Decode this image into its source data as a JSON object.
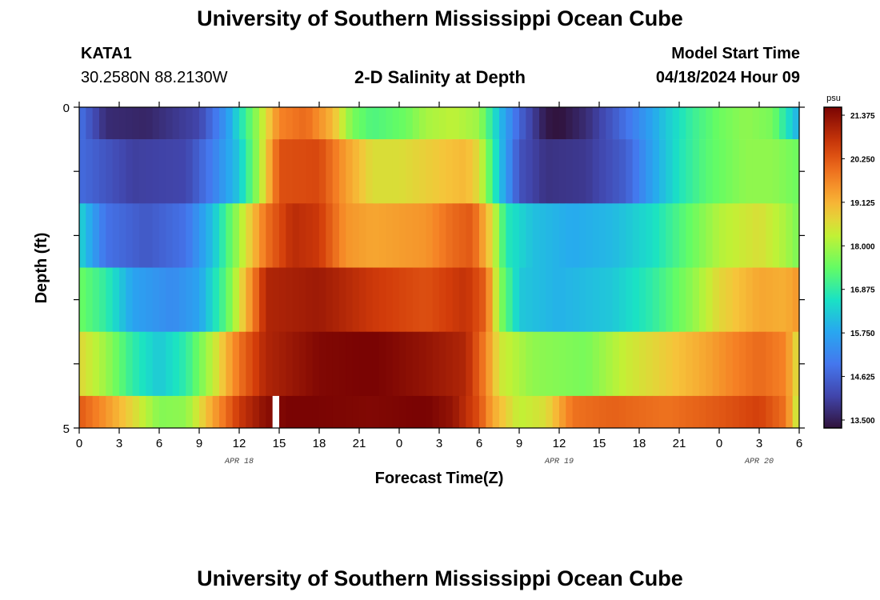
{
  "titles": {
    "main": "University of Southern Mississippi Ocean Cube",
    "footer": "University of Southern Mississippi Ocean Cube"
  },
  "station": {
    "id": "KATA1",
    "coords": "30.2580N  88.2130W"
  },
  "plot_title": "2-D Salinity at Depth",
  "model": {
    "label": "Model Start Time",
    "value": "04/18/2024 Hour 09"
  },
  "chart_data": {
    "type": "heatmap",
    "title": "2-D Salinity at Depth",
    "xlabel": "Forecast Time(Z)",
    "ylabel": "Depth (ft)",
    "units": "psu",
    "x_ticks": [
      "0",
      "3",
      "6",
      "9",
      "12",
      "15",
      "18",
      "21",
      "0",
      "3",
      "6",
      "9",
      "12",
      "15",
      "18",
      "21",
      "0",
      "3",
      "6"
    ],
    "x_range_hours": [
      0,
      54
    ],
    "date_labels": [
      {
        "label": "APR 18",
        "hour": 12
      },
      {
        "label": "APR 19",
        "hour": 36
      },
      {
        "label": "APR 20",
        "hour": 51
      }
    ],
    "y_ticks": [
      "0",
      "5"
    ],
    "y_range": [
      0,
      5
    ],
    "colorbar": {
      "min": 13.5,
      "max": 21.375,
      "labels": [
        "21.375",
        "20.250",
        "19.125",
        "18.000",
        "16.875",
        "15.750",
        "14.625",
        "13.500"
      ]
    },
    "missing_hour": 14.5,
    "rows": [
      {
        "depth_band": "0-0.5",
        "keyframes": [
          [
            0,
            15.0
          ],
          [
            2,
            13.9
          ],
          [
            5,
            13.8
          ],
          [
            9,
            14.3
          ],
          [
            11,
            15.6
          ],
          [
            12,
            16.6
          ],
          [
            13.5,
            18.0
          ],
          [
            15,
            19.6
          ],
          [
            17,
            19.9
          ],
          [
            19,
            19.0
          ],
          [
            20.5,
            17.6
          ],
          [
            22,
            17.2
          ],
          [
            24.5,
            17.5
          ],
          [
            26,
            18.0
          ],
          [
            28,
            18.2
          ],
          [
            30,
            17.9
          ],
          [
            31.5,
            16.2
          ],
          [
            33,
            14.8
          ],
          [
            35,
            13.6
          ],
          [
            36,
            13.5
          ],
          [
            38,
            13.9
          ],
          [
            40,
            14.6
          ],
          [
            42,
            15.4
          ],
          [
            44,
            16.3
          ],
          [
            46,
            17.0
          ],
          [
            48,
            17.5
          ],
          [
            50,
            17.8
          ],
          [
            52,
            17.6
          ],
          [
            54,
            15.9
          ]
        ]
      },
      {
        "depth_band": "0.5-1.5",
        "keyframes": [
          [
            0,
            14.9
          ],
          [
            4,
            14.2
          ],
          [
            8,
            14.3
          ],
          [
            10,
            15.2
          ],
          [
            12,
            16.3
          ],
          [
            13.5,
            18.0
          ],
          [
            15,
            20.2
          ],
          [
            18,
            20.3
          ],
          [
            20,
            19.3
          ],
          [
            22,
            18.5
          ],
          [
            24,
            18.5
          ],
          [
            27,
            18.8
          ],
          [
            29,
            19.0
          ],
          [
            30,
            18.5
          ],
          [
            31.5,
            16.3
          ],
          [
            33,
            14.5
          ],
          [
            35,
            14.0
          ],
          [
            38,
            14.1
          ],
          [
            41,
            14.7
          ],
          [
            43,
            15.8
          ],
          [
            45,
            16.7
          ],
          [
            47,
            17.3
          ],
          [
            50,
            17.8
          ],
          [
            52,
            17.8
          ],
          [
            54,
            17.5
          ]
        ]
      },
      {
        "depth_band": "1.5-2.5",
        "keyframes": [
          [
            0,
            16.5
          ],
          [
            2,
            15.0
          ],
          [
            5,
            14.6
          ],
          [
            8,
            15.0
          ],
          [
            10,
            16.2
          ],
          [
            12,
            18.0
          ],
          [
            14,
            19.8
          ],
          [
            16,
            20.7
          ],
          [
            18,
            20.5
          ],
          [
            20,
            19.4
          ],
          [
            22,
            19.2
          ],
          [
            26,
            19.4
          ],
          [
            28,
            19.9
          ],
          [
            29.5,
            20.1
          ],
          [
            31,
            18.5
          ],
          [
            32,
            16.8
          ],
          [
            34,
            16.2
          ],
          [
            37,
            15.9
          ],
          [
            40,
            16.1
          ],
          [
            43,
            16.6
          ],
          [
            46,
            17.5
          ],
          [
            48,
            18.1
          ],
          [
            51,
            18.5
          ],
          [
            53,
            18.0
          ],
          [
            54,
            17.6
          ]
        ]
      },
      {
        "depth_band": "2.5-3.5",
        "keyframes": [
          [
            0,
            17.5
          ],
          [
            2,
            16.9
          ],
          [
            4,
            15.8
          ],
          [
            7,
            15.4
          ],
          [
            9,
            15.8
          ],
          [
            11,
            17.3
          ],
          [
            12.5,
            19.0
          ],
          [
            14,
            20.8
          ],
          [
            18,
            21.0
          ],
          [
            22,
            20.5
          ],
          [
            26,
            20.2
          ],
          [
            29,
            20.6
          ],
          [
            30.5,
            20.0
          ],
          [
            31.5,
            17.8
          ],
          [
            33,
            16.3
          ],
          [
            36,
            16.0
          ],
          [
            40,
            16.3
          ],
          [
            43,
            16.9
          ],
          [
            46,
            17.8
          ],
          [
            48,
            18.6
          ],
          [
            51,
            19.2
          ],
          [
            53,
            19.1
          ],
          [
            54,
            19.4
          ]
        ]
      },
      {
        "depth_band": "3.5-4.5",
        "keyframes": [
          [
            0,
            18.6
          ],
          [
            2,
            17.9
          ],
          [
            4,
            16.9
          ],
          [
            6,
            16.3
          ],
          [
            8,
            16.9
          ],
          [
            10,
            18.2
          ],
          [
            12,
            19.8
          ],
          [
            14,
            20.8
          ],
          [
            18,
            21.3
          ],
          [
            22,
            21.4
          ],
          [
            26,
            21.1
          ],
          [
            29,
            20.8
          ],
          [
            30.5,
            19.6
          ],
          [
            31.5,
            18.4
          ],
          [
            34,
            17.8
          ],
          [
            38,
            17.6
          ],
          [
            41,
            18.3
          ],
          [
            43,
            18.6
          ],
          [
            45,
            18.9
          ],
          [
            47,
            19.2
          ],
          [
            49,
            19.6
          ],
          [
            51,
            19.9
          ],
          [
            53,
            19.6
          ],
          [
            54,
            18.3
          ]
        ]
      },
      {
        "depth_band": "4.5-5",
        "keyframes": [
          [
            0,
            20.1
          ],
          [
            2,
            19.4
          ],
          [
            4,
            18.6
          ],
          [
            6,
            17.7
          ],
          [
            8,
            17.8
          ],
          [
            10,
            19.2
          ],
          [
            12,
            20.5
          ],
          [
            14,
            21.2
          ],
          [
            16,
            21.4
          ],
          [
            22,
            21.3
          ],
          [
            26,
            21.4
          ],
          [
            28,
            21.1
          ],
          [
            30,
            20.2
          ],
          [
            31,
            19.2
          ],
          [
            33,
            18.2
          ],
          [
            35,
            18.5
          ],
          [
            37,
            19.8
          ],
          [
            40,
            20.0
          ],
          [
            44,
            19.8
          ],
          [
            48,
            20.1
          ],
          [
            51,
            20.4
          ],
          [
            53,
            19.8
          ],
          [
            54,
            18.0
          ]
        ]
      }
    ]
  },
  "colors": {
    "background": "#ffffff",
    "missing": "#ffffff",
    "axis": "#000000"
  }
}
